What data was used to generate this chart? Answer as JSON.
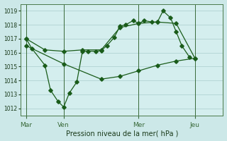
{
  "xlabel": "Pression niveau de la mer( hPa )",
  "background_color": "#cce8e8",
  "plot_bg_color": "#d4eeee",
  "grid_color": "#aacccc",
  "line_color": "#1a5c1a",
  "ylim": [
    1011.5,
    1019.5
  ],
  "yticks": [
    1012,
    1013,
    1014,
    1015,
    1016,
    1017,
    1018,
    1019
  ],
  "xtick_labels": [
    "Mar",
    "Ven",
    "Mer",
    "Jeu"
  ],
  "xtick_positions": [
    0,
    2,
    6,
    9
  ],
  "xlim": [
    -0.3,
    10.5
  ],
  "vline_positions": [
    0,
    2,
    6,
    9
  ],
  "line1": [
    [
      0,
      1017.0
    ],
    [
      0.3,
      1016.3
    ],
    [
      1.0,
      1015.1
    ],
    [
      1.3,
      1013.3
    ],
    [
      1.7,
      1012.5
    ],
    [
      2.0,
      1012.1
    ],
    [
      2.3,
      1013.1
    ],
    [
      2.7,
      1013.9
    ],
    [
      3.0,
      1016.1
    ],
    [
      3.3,
      1016.1
    ],
    [
      3.7,
      1016.1
    ],
    [
      4.0,
      1016.15
    ],
    [
      4.3,
      1016.5
    ],
    [
      4.7,
      1017.1
    ],
    [
      5.0,
      1017.9
    ],
    [
      5.3,
      1018.0
    ],
    [
      5.7,
      1018.3
    ],
    [
      6.0,
      1018.1
    ],
    [
      6.3,
      1018.3
    ],
    [
      6.7,
      1018.2
    ],
    [
      7.0,
      1018.2
    ],
    [
      7.3,
      1019.0
    ],
    [
      7.7,
      1018.5
    ],
    [
      8.0,
      1017.5
    ],
    [
      8.3,
      1016.5
    ],
    [
      8.7,
      1015.7
    ]
  ],
  "line2": [
    [
      0,
      1017.0
    ],
    [
      1.0,
      1016.2
    ],
    [
      2.0,
      1016.1
    ],
    [
      3.0,
      1016.2
    ],
    [
      4.0,
      1016.2
    ],
    [
      5.0,
      1017.8
    ],
    [
      6.0,
      1018.1
    ],
    [
      7.0,
      1018.2
    ],
    [
      8.0,
      1018.1
    ],
    [
      9.0,
      1015.6
    ]
  ],
  "line3": [
    [
      0,
      1016.5
    ],
    [
      2.0,
      1015.2
    ],
    [
      4.0,
      1014.1
    ],
    [
      5.0,
      1014.3
    ],
    [
      6.0,
      1014.7
    ],
    [
      7.0,
      1015.1
    ],
    [
      8.0,
      1015.4
    ],
    [
      9.0,
      1015.6
    ]
  ]
}
